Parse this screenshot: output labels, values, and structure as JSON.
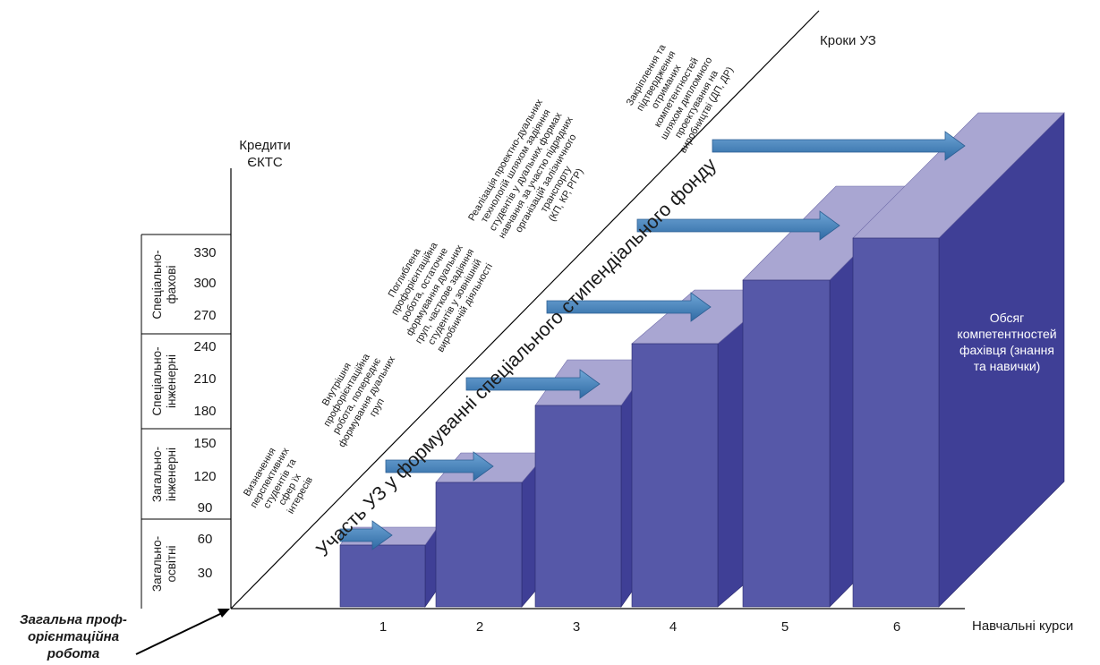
{
  "axes": {
    "y_title": [
      "Кредити",
      "ЄКТС"
    ],
    "x_title": "Навчальні курси",
    "diag_title": "Кроки УЗ",
    "y_ticks": [
      "30",
      "60",
      "90",
      "120",
      "150",
      "180",
      "210",
      "240",
      "270",
      "300",
      "330"
    ],
    "x_ticks": [
      "1",
      "2",
      "3",
      "4",
      "5",
      "6"
    ]
  },
  "categories": [
    [
      "Загально-",
      "освітні"
    ],
    [
      "Загально-",
      "інженерні"
    ],
    [
      "Спеціально-",
      "інженерні"
    ],
    [
      "Спеціально-",
      "фахові"
    ]
  ],
  "origin_label": [
    "Загальна проф-",
    "орієнтаційна",
    "робота"
  ],
  "diagonal_text": "Участь УЗ у формуванні спеціального стипендіального фонду",
  "steps": [
    [
      "Визначення",
      "перспективних",
      "студентів та",
      "сфер їх",
      "інтересів"
    ],
    [
      "Внутрішня",
      "профорієнтаційна",
      "робота, попереднє",
      "формування дуальних",
      "груп"
    ],
    [
      "Поглиблена",
      "профорієнтаційна",
      "робота, остаточне",
      "формування дуальних",
      "груп, часткове задіяння",
      "студентів у зовнішній",
      "виробничій діяльності"
    ],
    [
      "Реалізація проектно-дуальних",
      "технологій шляхом задіяння",
      "студентів у дуальних формах",
      "навчання за участю підрядних",
      "організацій залізничного",
      "транспорту",
      "(КП, КР, РГР)"
    ],
    [
      "Закріплення та",
      "підтвердження",
      "отриманих",
      "компетентностей",
      "шляхом дипломного",
      "проектування на",
      "виробництві (ДП, ДР)"
    ]
  ],
  "big_block_label": [
    "Обсяг",
    "компетентностей",
    "фахівця (знання",
    "та навички)"
  ],
  "colors": {
    "front": "#5658a8",
    "side": "#3f3f96",
    "top": "#a9a6d2",
    "arrow": "#3c7db8",
    "axis": "#000000"
  }
}
